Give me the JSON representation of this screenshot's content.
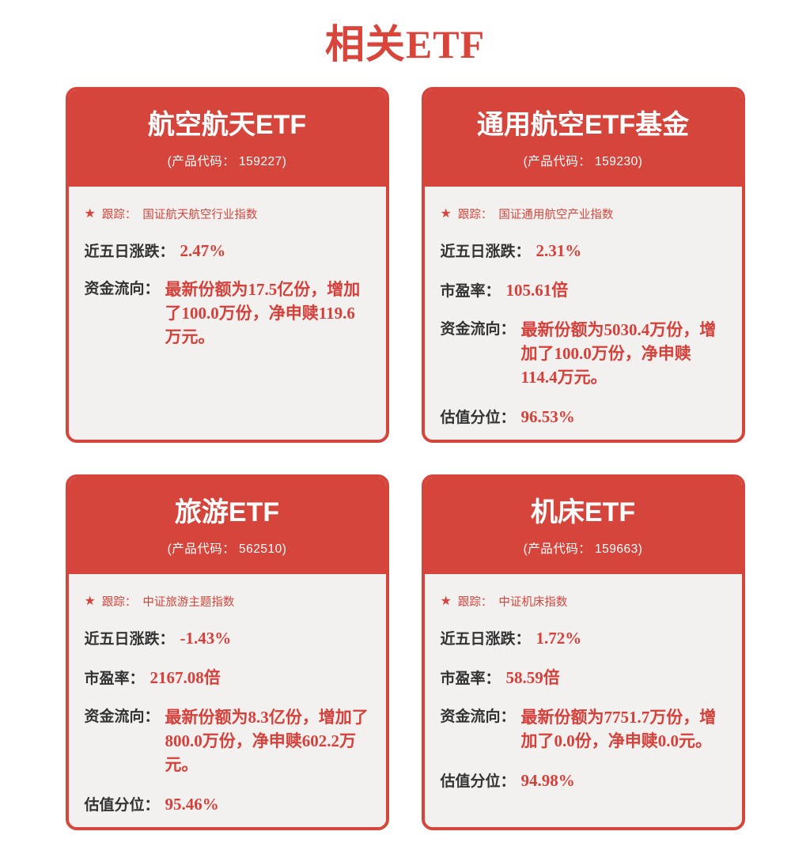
{
  "page_title": "相关ETF",
  "colors": {
    "primary_red": "#d5453c",
    "value_red": "#d6403a",
    "label_dark": "#333333",
    "card_body_bg": "#f2f1ef",
    "page_bg": "#ffffff"
  },
  "icons": {
    "star": "★"
  },
  "labels": {
    "tracking": "跟踪：",
    "five_day": "近五日涨跌：",
    "pe": "市盈率：",
    "fund_flow": "资金流向：",
    "valuation": "估值分位："
  },
  "cards": [
    {
      "title": "航空航天ETF",
      "code_line": "(产品代码： 159227)",
      "tracking_index": "国证航天航空行业指数",
      "five_day_change": "2.47%",
      "fund_flow": "最新份额为17.5亿份，增加了100.0万份，净申赎119.6万元。"
    },
    {
      "title": "通用航空ETF基金",
      "code_line": "(产品代码： 159230)",
      "tracking_index": "国证通用航空产业指数",
      "five_day_change": "2.31%",
      "pe_ratio": "105.61倍",
      "fund_flow": "最新份额为5030.4万份，增加了100.0万份，净申赎114.4万元。",
      "valuation_percentile": "96.53%"
    },
    {
      "title": "旅游ETF",
      "code_line": "(产品代码： 562510)",
      "tracking_index": "中证旅游主题指数",
      "five_day_change": "-1.43%",
      "pe_ratio": "2167.08倍",
      "fund_flow": "最新份额为8.3亿份，增加了800.0万份，净申赎602.2万元。",
      "valuation_percentile": "95.46%"
    },
    {
      "title": "机床ETF",
      "code_line": "(产品代码： 159663)",
      "tracking_index": "中证机床指数",
      "five_day_change": "1.72%",
      "pe_ratio": "58.59倍",
      "fund_flow": "最新份额为7751.7万份，增加了0.0份，净申赎0.0元。",
      "valuation_percentile": "94.98%"
    }
  ]
}
